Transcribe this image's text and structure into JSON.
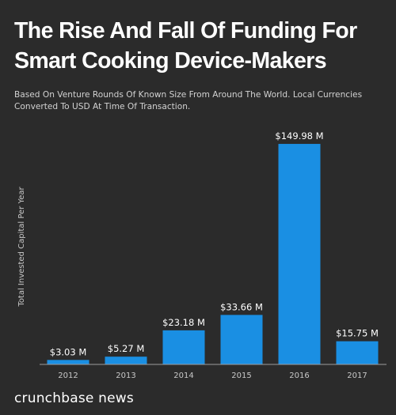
{
  "header": {
    "title": "The Rise And Fall Of Funding For Smart Cooking Device-Makers",
    "subtitle": "Based On Venture Rounds Of Known Size From Around The World. Local Currencies Converted To USD At Time Of Transaction."
  },
  "footer": {
    "brand": "crunchbase news"
  },
  "colors": {
    "background": "#2b2b2b",
    "bar": "#1a8fe3",
    "baseline": "#9e9e9e"
  },
  "chart_data": {
    "type": "bar",
    "categories": [
      "2012",
      "2013",
      "2014",
      "2015",
      "2016",
      "2017"
    ],
    "values": [
      3.03,
      5.27,
      23.18,
      33.66,
      149.98,
      15.75
    ],
    "data_labels": [
      "$3.03 M",
      "$5.27 M",
      "$23.18 M",
      "$33.66 M",
      "$149.98 M",
      "$15.75 M"
    ],
    "xlabel": "",
    "ylabel": "Total Invested Capital Per Year",
    "ylim": [
      0,
      150
    ],
    "grid": false,
    "legend": "none"
  }
}
